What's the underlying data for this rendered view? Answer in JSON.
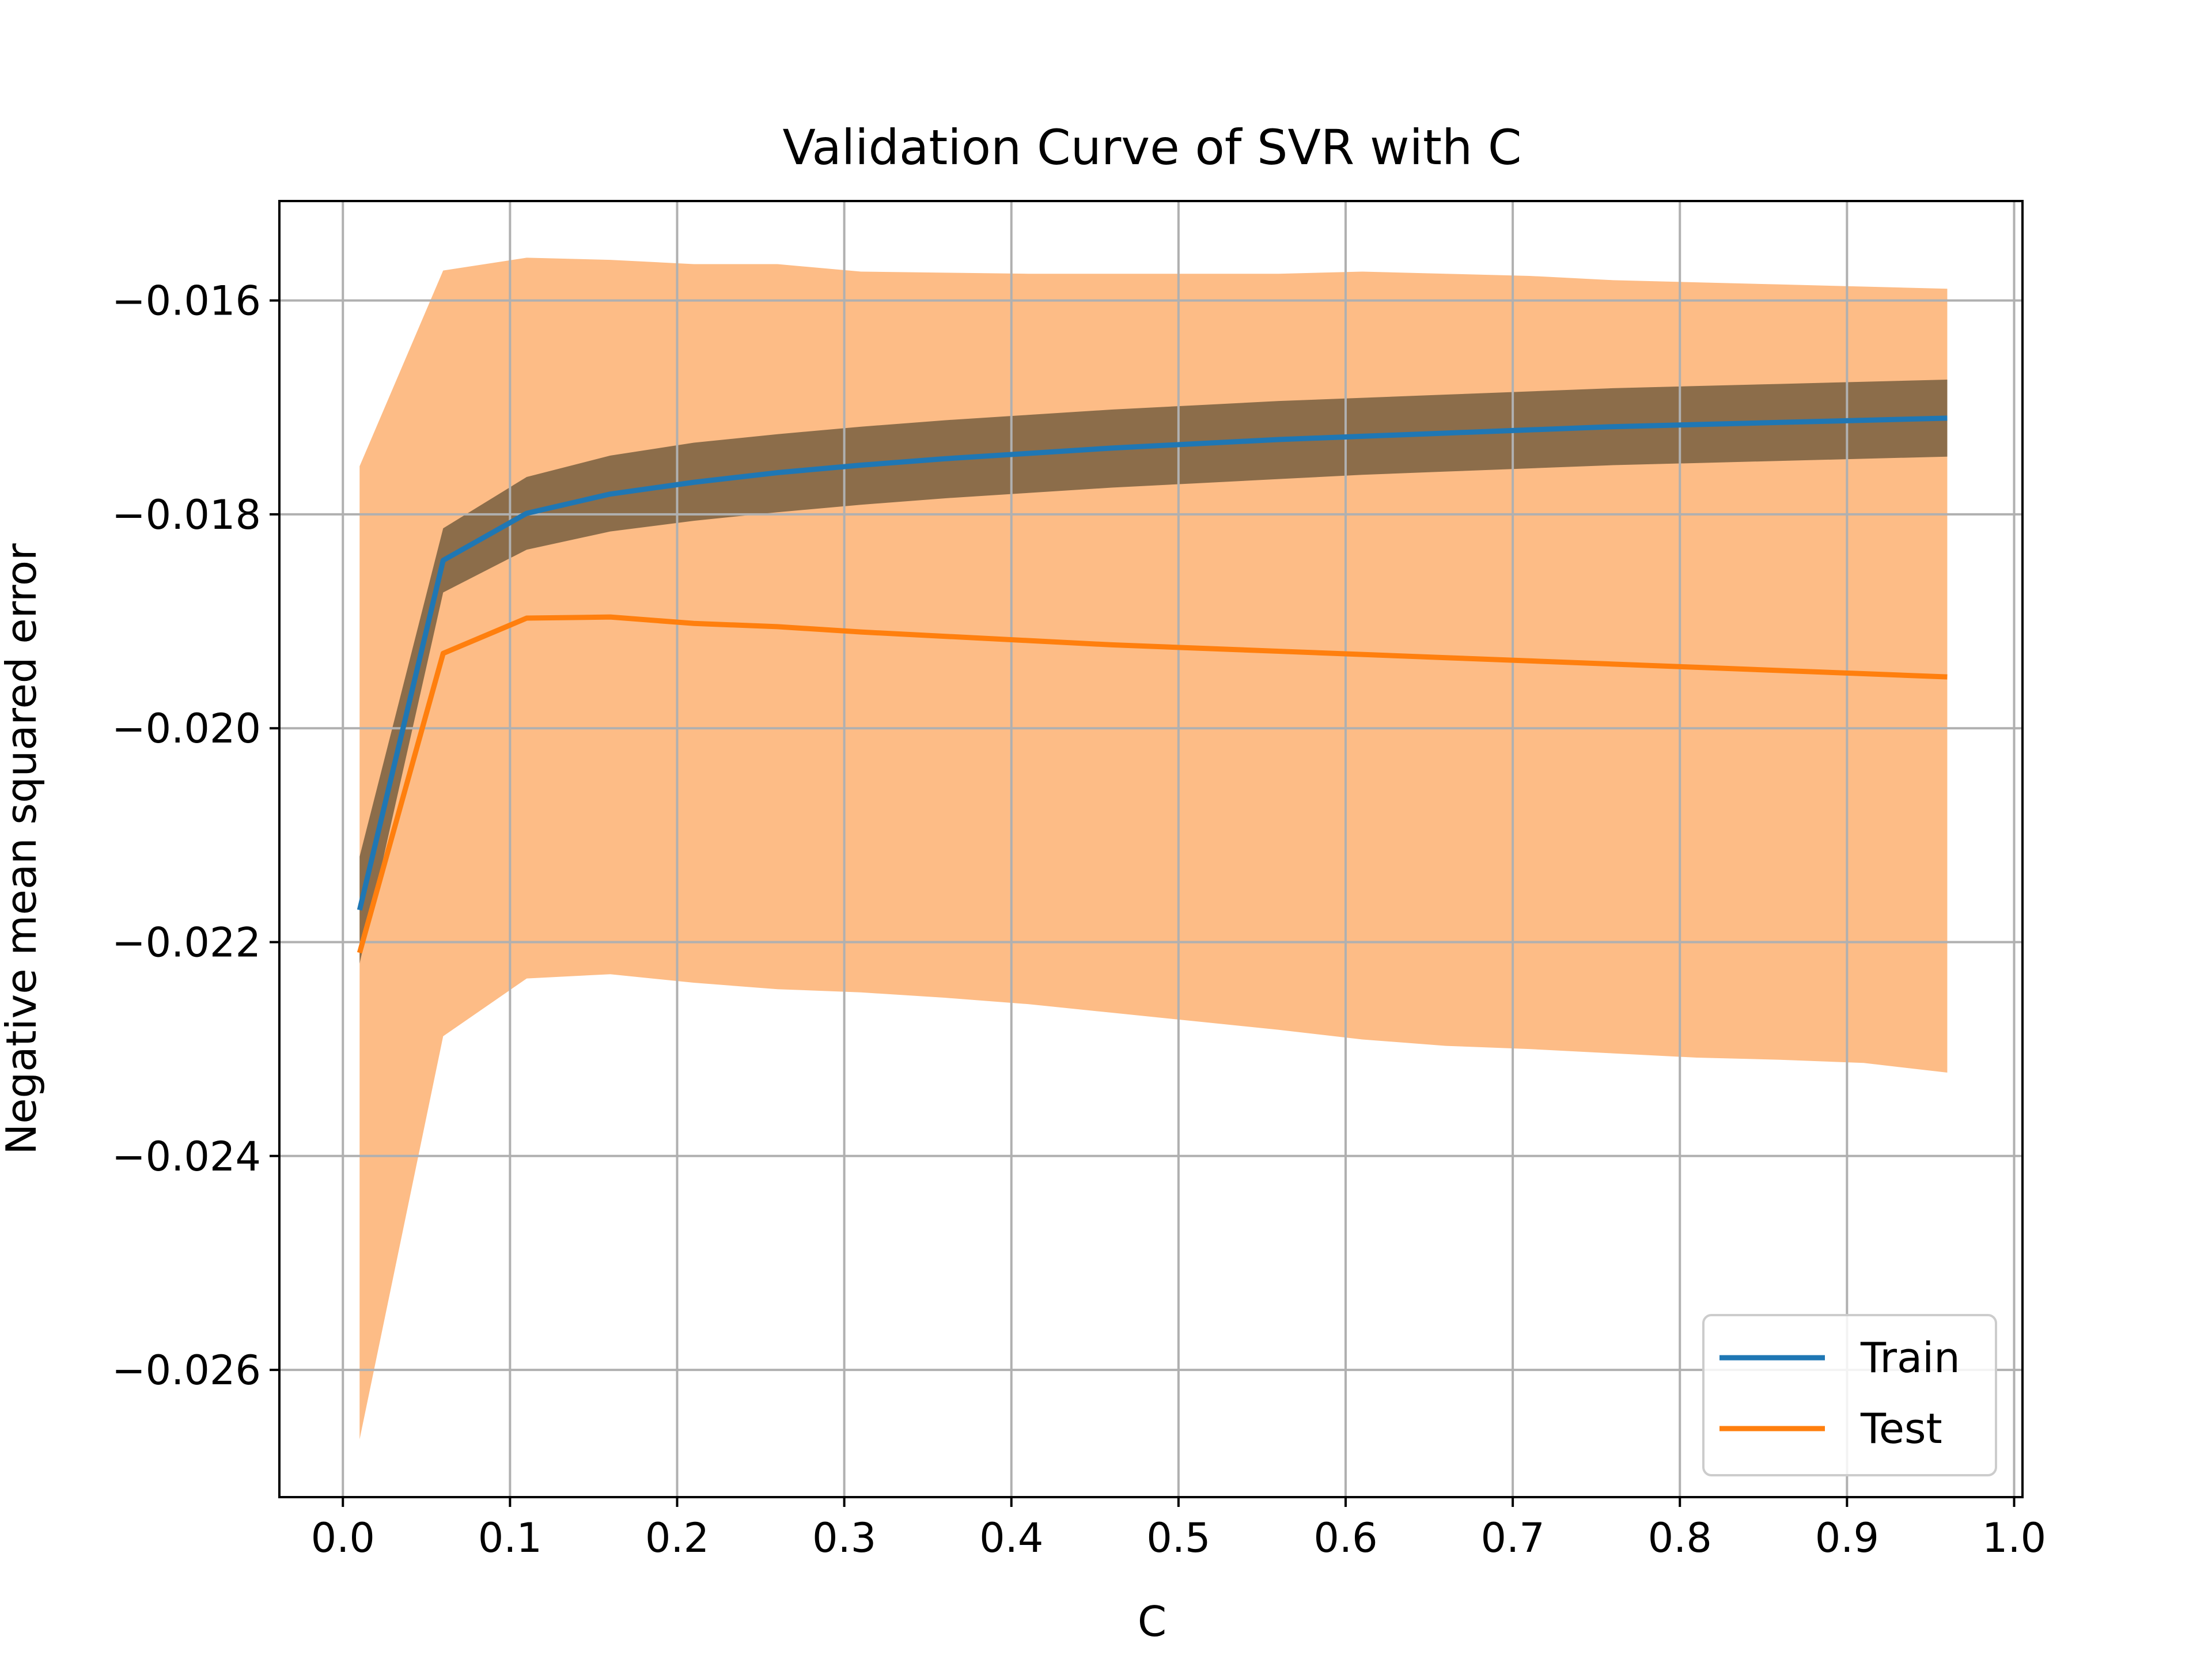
{
  "chart_data": {
    "type": "line",
    "title": "Validation Curve of SVR with C",
    "xlabel": "C",
    "ylabel": "Negative mean squared error",
    "xlim": [
      -0.038,
      1.005
    ],
    "ylim": [
      -0.02719,
      -0.01507
    ],
    "xticks": [
      0.0,
      0.1,
      0.2,
      0.3,
      0.4,
      0.5,
      0.6,
      0.7,
      0.8,
      0.9,
      1.0
    ],
    "xtick_labels": [
      "0.0",
      "0.1",
      "0.2",
      "0.3",
      "0.4",
      "0.5",
      "0.6",
      "0.7",
      "0.8",
      "0.9",
      "1.0"
    ],
    "yticks": [
      -0.026,
      -0.024,
      -0.022,
      -0.02,
      -0.018,
      -0.016
    ],
    "ytick_labels": [
      "−0.026",
      "−0.024",
      "−0.022",
      "−0.020",
      "−0.018",
      "−0.016"
    ],
    "grid": true,
    "legend_position": "lower-right",
    "x": [
      0.01,
      0.06,
      0.11,
      0.16,
      0.21,
      0.26,
      0.31,
      0.36,
      0.41,
      0.46,
      0.51,
      0.56,
      0.61,
      0.66,
      0.71,
      0.76,
      0.81,
      0.86,
      0.91,
      0.96
    ],
    "series": [
      {
        "name": "Train",
        "color": "#1f77b4",
        "band_color": "#8c6d4a",
        "mean": [
          -0.0217,
          -0.01843,
          -0.01799,
          -0.01781,
          -0.0177,
          -0.01761,
          -0.01754,
          -0.01748,
          -0.01743,
          -0.01738,
          -0.01734,
          -0.0173,
          -0.01727,
          -0.01724,
          -0.01721,
          -0.01718,
          -0.01716,
          -0.01714,
          -0.01712,
          -0.0171
        ],
        "upper": [
          -0.0212,
          -0.01813,
          -0.01765,
          -0.01745,
          -0.01733,
          -0.01725,
          -0.01718,
          -0.01712,
          -0.01707,
          -0.01702,
          -0.01698,
          -0.01694,
          -0.01691,
          -0.01688,
          -0.01685,
          -0.01682,
          -0.0168,
          -0.01678,
          -0.01676,
          -0.01674
        ],
        "lower": [
          -0.0222,
          -0.01873,
          -0.01833,
          -0.01816,
          -0.01806,
          -0.01798,
          -0.01791,
          -0.01785,
          -0.0178,
          -0.01775,
          -0.01771,
          -0.01767,
          -0.01763,
          -0.0176,
          -0.01757,
          -0.01754,
          -0.01752,
          -0.0175,
          -0.01748,
          -0.01746
        ]
      },
      {
        "name": "Test",
        "color": "#ff7f0e",
        "band_color": "#fdbc86",
        "mean": [
          -0.0221,
          -0.0193,
          -0.01897,
          -0.01896,
          -0.01902,
          -0.01905,
          -0.0191,
          -0.01914,
          -0.01918,
          -0.01922,
          -0.01925,
          -0.01928,
          -0.01931,
          -0.01934,
          -0.01937,
          -0.0194,
          -0.01943,
          -0.01946,
          -0.01949,
          -0.01952
        ],
        "upper": [
          -0.01755,
          -0.01572,
          -0.0156,
          -0.01562,
          -0.01566,
          -0.01566,
          -0.01573,
          -0.01574,
          -0.01575,
          -0.01575,
          -0.01575,
          -0.01575,
          -0.01573,
          -0.01575,
          -0.01577,
          -0.01581,
          -0.01583,
          -0.01585,
          -0.01587,
          -0.01589
        ],
        "lower": [
          -0.02665,
          -0.02288,
          -0.02234,
          -0.0223,
          -0.02238,
          -0.02244,
          -0.02247,
          -0.02252,
          -0.02258,
          -0.02266,
          -0.02274,
          -0.02282,
          -0.02291,
          -0.02297,
          -0.023,
          -0.02304,
          -0.02308,
          -0.0231,
          -0.02313,
          -0.02322
        ]
      }
    ]
  }
}
